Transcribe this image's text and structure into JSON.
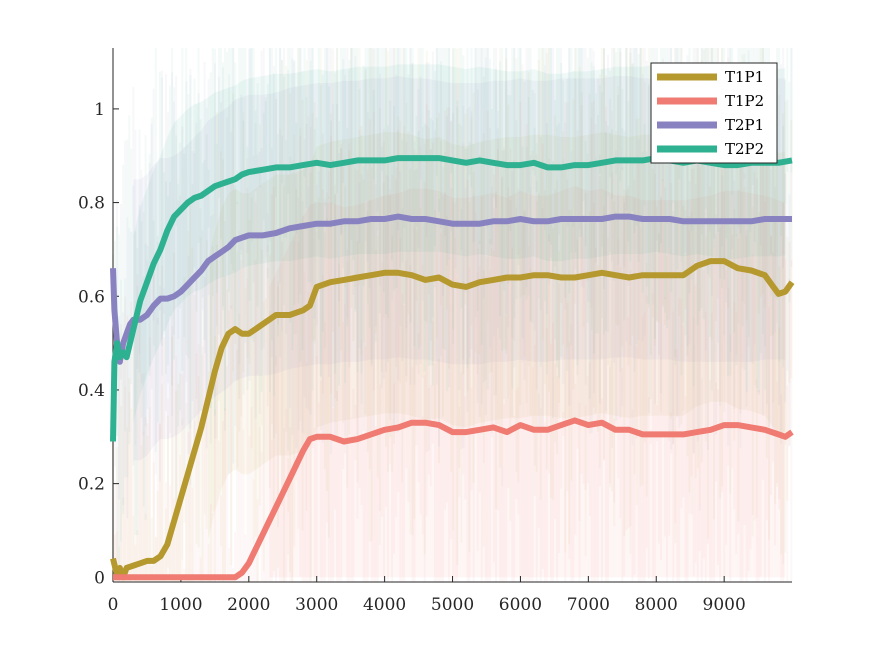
{
  "chart_data": {
    "type": "line",
    "title": "",
    "xlabel": "",
    "ylabel": "",
    "xlim": [
      0,
      9999
    ],
    "ylim": [
      -0.01,
      1.13
    ],
    "grid": false,
    "legend_position": "top-right",
    "x_ticks": [
      0,
      1000,
      2000,
      3000,
      4000,
      5000,
      6000,
      7000,
      8000,
      9000
    ],
    "x_tick_labels": [
      "0",
      "1000",
      "2000",
      "3000",
      "4000",
      "5000",
      "6000",
      "7000",
      "8000",
      "9000"
    ],
    "y_ticks": [
      0,
      0.2,
      0.4,
      0.6,
      0.8,
      1.0
    ],
    "y_tick_labels": [
      "0",
      "0.2",
      "0.4",
      "0.6",
      "0.8",
      "1"
    ],
    "series": [
      {
        "name": "T1P1",
        "color": "#b5982e",
        "x": [
          0,
          50,
          100,
          150,
          200,
          300,
          400,
          500,
          600,
          700,
          800,
          900,
          1000,
          1100,
          1200,
          1300,
          1400,
          1500,
          1600,
          1700,
          1800,
          1900,
          2000,
          2100,
          2200,
          2300,
          2400,
          2500,
          2600,
          2700,
          2800,
          2900,
          3000,
          3200,
          3400,
          3600,
          3800,
          4000,
          4200,
          4400,
          4600,
          4800,
          5000,
          5200,
          5400,
          5600,
          5800,
          6000,
          6200,
          6400,
          6600,
          6800,
          7000,
          7200,
          7400,
          7600,
          7800,
          8000,
          8200,
          8400,
          8600,
          8800,
          9000,
          9200,
          9400,
          9600,
          9700,
          9800,
          9900,
          9999
        ],
        "y": [
          0.04,
          0.01,
          0.02,
          0.0,
          0.02,
          0.025,
          0.03,
          0.035,
          0.035,
          0.045,
          0.07,
          0.12,
          0.17,
          0.22,
          0.27,
          0.32,
          0.38,
          0.44,
          0.49,
          0.52,
          0.53,
          0.52,
          0.52,
          0.53,
          0.54,
          0.55,
          0.56,
          0.56,
          0.56,
          0.565,
          0.57,
          0.58,
          0.62,
          0.63,
          0.635,
          0.64,
          0.645,
          0.65,
          0.65,
          0.645,
          0.635,
          0.64,
          0.625,
          0.62,
          0.63,
          0.635,
          0.64,
          0.64,
          0.645,
          0.645,
          0.64,
          0.64,
          0.645,
          0.65,
          0.645,
          0.64,
          0.645,
          0.645,
          0.645,
          0.645,
          0.665,
          0.675,
          0.675,
          0.66,
          0.655,
          0.645,
          0.625,
          0.605,
          0.61,
          0.63
        ]
      },
      {
        "name": "T1P2",
        "color": "#ef7b72",
        "x": [
          0,
          200,
          400,
          600,
          800,
          1000,
          1200,
          1400,
          1600,
          1800,
          1900,
          2000,
          2100,
          2200,
          2300,
          2400,
          2500,
          2600,
          2700,
          2800,
          2900,
          3000,
          3200,
          3400,
          3600,
          3800,
          4000,
          4200,
          4400,
          4600,
          4800,
          5000,
          5200,
          5400,
          5600,
          5800,
          6000,
          6200,
          6400,
          6600,
          6800,
          7000,
          7200,
          7400,
          7600,
          7800,
          8000,
          8200,
          8400,
          8600,
          8800,
          9000,
          9200,
          9400,
          9600,
          9800,
          9900,
          9999
        ],
        "y": [
          0.0,
          0.0,
          0.0,
          0.0,
          0.0,
          0.0,
          0.0,
          0.0,
          0.0,
          0.0,
          0.01,
          0.03,
          0.06,
          0.09,
          0.12,
          0.15,
          0.18,
          0.21,
          0.24,
          0.27,
          0.295,
          0.3,
          0.3,
          0.29,
          0.295,
          0.305,
          0.315,
          0.32,
          0.33,
          0.33,
          0.325,
          0.31,
          0.31,
          0.315,
          0.32,
          0.31,
          0.325,
          0.315,
          0.315,
          0.325,
          0.335,
          0.325,
          0.33,
          0.315,
          0.315,
          0.305,
          0.305,
          0.305,
          0.305,
          0.31,
          0.315,
          0.325,
          0.325,
          0.32,
          0.315,
          0.305,
          0.3,
          0.31
        ]
      },
      {
        "name": "T2P1",
        "color": "#8883c0",
        "x": [
          0,
          20,
          60,
          100,
          150,
          200,
          250,
          300,
          400,
          500,
          600,
          700,
          800,
          900,
          1000,
          1100,
          1200,
          1300,
          1400,
          1500,
          1600,
          1700,
          1800,
          1900,
          2000,
          2200,
          2400,
          2600,
          2800,
          3000,
          3200,
          3400,
          3600,
          3800,
          4000,
          4200,
          4400,
          4600,
          4800,
          5000,
          5200,
          5400,
          5600,
          5800,
          6000,
          6200,
          6400,
          6600,
          6800,
          7000,
          7200,
          7400,
          7600,
          7800,
          8000,
          8200,
          8400,
          8600,
          8800,
          9000,
          9200,
          9400,
          9600,
          9800,
          9999
        ],
        "y": [
          0.66,
          0.57,
          0.5,
          0.46,
          0.5,
          0.52,
          0.54,
          0.55,
          0.55,
          0.56,
          0.58,
          0.595,
          0.595,
          0.6,
          0.61,
          0.625,
          0.64,
          0.655,
          0.675,
          0.685,
          0.695,
          0.705,
          0.72,
          0.725,
          0.73,
          0.73,
          0.735,
          0.745,
          0.75,
          0.755,
          0.755,
          0.76,
          0.76,
          0.765,
          0.765,
          0.77,
          0.765,
          0.765,
          0.76,
          0.755,
          0.755,
          0.755,
          0.76,
          0.76,
          0.765,
          0.76,
          0.76,
          0.765,
          0.765,
          0.765,
          0.765,
          0.77,
          0.77,
          0.765,
          0.765,
          0.765,
          0.76,
          0.76,
          0.76,
          0.76,
          0.76,
          0.76,
          0.765,
          0.765,
          0.765
        ]
      },
      {
        "name": "T2P2",
        "color": "#2eb190",
        "x": [
          0,
          20,
          60,
          100,
          150,
          200,
          250,
          300,
          400,
          500,
          600,
          700,
          800,
          900,
          1000,
          1100,
          1200,
          1300,
          1400,
          1500,
          1600,
          1700,
          1800,
          1900,
          2000,
          2200,
          2400,
          2600,
          2800,
          3000,
          3200,
          3400,
          3600,
          3800,
          4000,
          4200,
          4400,
          4600,
          4800,
          5000,
          5200,
          5400,
          5600,
          5800,
          6000,
          6200,
          6400,
          6600,
          6800,
          7000,
          7200,
          7400,
          7600,
          7800,
          8000,
          8200,
          8400,
          8600,
          8800,
          9000,
          9200,
          9400,
          9600,
          9800,
          9999
        ],
        "y": [
          0.29,
          0.46,
          0.5,
          0.47,
          0.48,
          0.47,
          0.5,
          0.53,
          0.59,
          0.63,
          0.67,
          0.7,
          0.74,
          0.77,
          0.785,
          0.8,
          0.81,
          0.815,
          0.825,
          0.835,
          0.84,
          0.845,
          0.85,
          0.86,
          0.865,
          0.87,
          0.875,
          0.875,
          0.88,
          0.885,
          0.88,
          0.885,
          0.89,
          0.89,
          0.89,
          0.895,
          0.895,
          0.895,
          0.895,
          0.89,
          0.885,
          0.89,
          0.885,
          0.88,
          0.88,
          0.885,
          0.875,
          0.875,
          0.88,
          0.88,
          0.885,
          0.89,
          0.89,
          0.89,
          0.895,
          0.89,
          0.885,
          0.89,
          0.885,
          0.88,
          0.88,
          0.885,
          0.885,
          0.885,
          0.89
        ]
      }
    ]
  }
}
